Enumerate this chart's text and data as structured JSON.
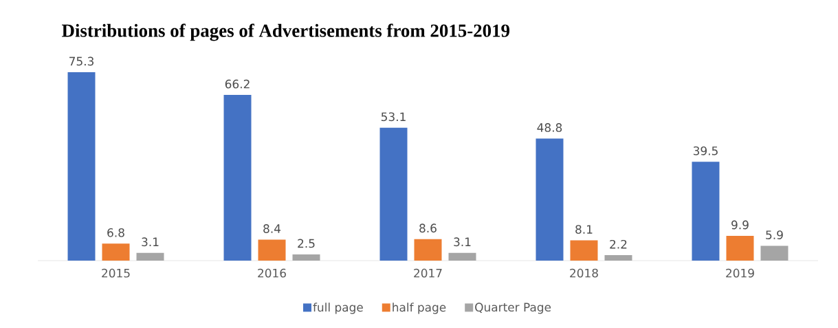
{
  "chart_data": {
    "type": "bar",
    "title": "Distributions of pages of Advertisements from 2015-2019",
    "categories": [
      "2015",
      "2016",
      "2017",
      "2018",
      "2019"
    ],
    "series": [
      {
        "name": "full page",
        "color": "#4472c4",
        "values": [
          75.3,
          66.2,
          53.1,
          48.8,
          39.5
        ]
      },
      {
        "name": "half page",
        "color": "#ed7d31",
        "values": [
          6.8,
          8.4,
          8.6,
          8.1,
          9.9
        ]
      },
      {
        "name": "Quarter Page",
        "color": "#a5a5a5",
        "values": [
          3.1,
          2.5,
          3.1,
          2.2,
          5.9
        ]
      }
    ],
    "data_labels": true,
    "legend": "bottom"
  }
}
